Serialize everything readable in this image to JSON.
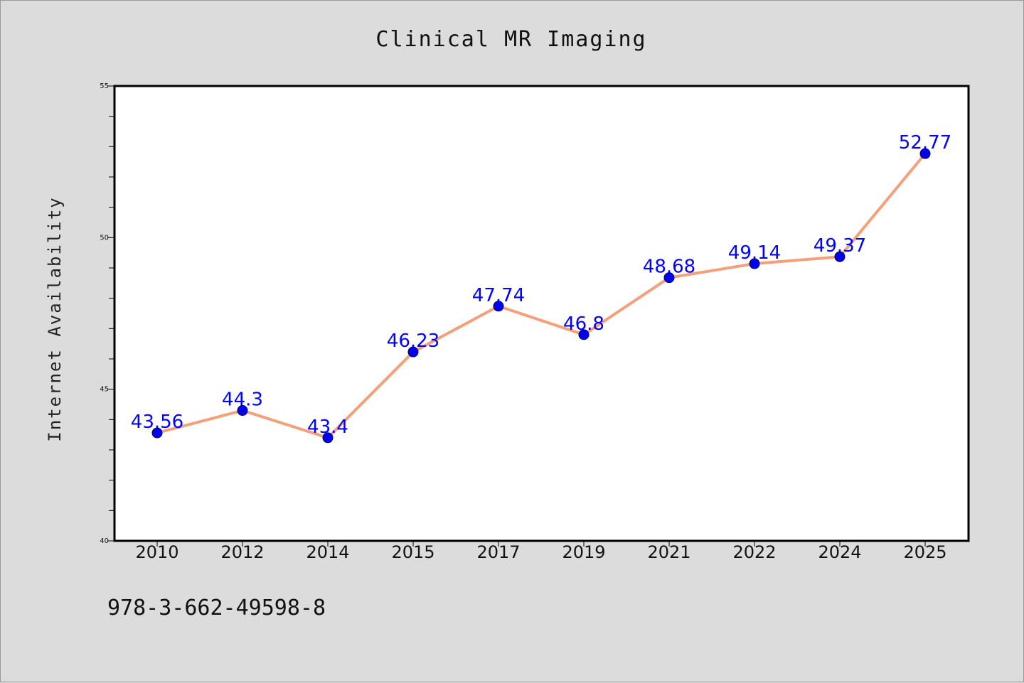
{
  "chart_data": {
    "type": "line",
    "title": "Clinical MR Imaging",
    "xlabel": "",
    "ylabel": "Internet Availability",
    "categories": [
      "2010",
      "2012",
      "2014",
      "2015",
      "2017",
      "2019",
      "2021",
      "2022",
      "2024",
      "2025"
    ],
    "series": [
      {
        "values": [
          43.56,
          44.3,
          43.4,
          46.23,
          47.74,
          46.8,
          48.68,
          49.14,
          49.37,
          52.77
        ],
        "labels": [
          "43.56",
          "44.3",
          "43.4",
          "46.23",
          "47.74",
          "46.8",
          "48.68",
          "49.14",
          "49.37",
          "52.77"
        ],
        "line_color": "#f4a07a",
        "marker_color": "#0000ee"
      }
    ],
    "ylim": [
      40,
      55
    ],
    "yticks": [
      "40",
      "45",
      "50",
      "55"
    ],
    "grid": false,
    "legend": "none"
  },
  "footer": {
    "isbn": "978-3-662-49598-8"
  },
  "colors": {
    "background": "#dcdcdc",
    "plot_background": "#ffffff",
    "label_color": "#0000ff"
  }
}
